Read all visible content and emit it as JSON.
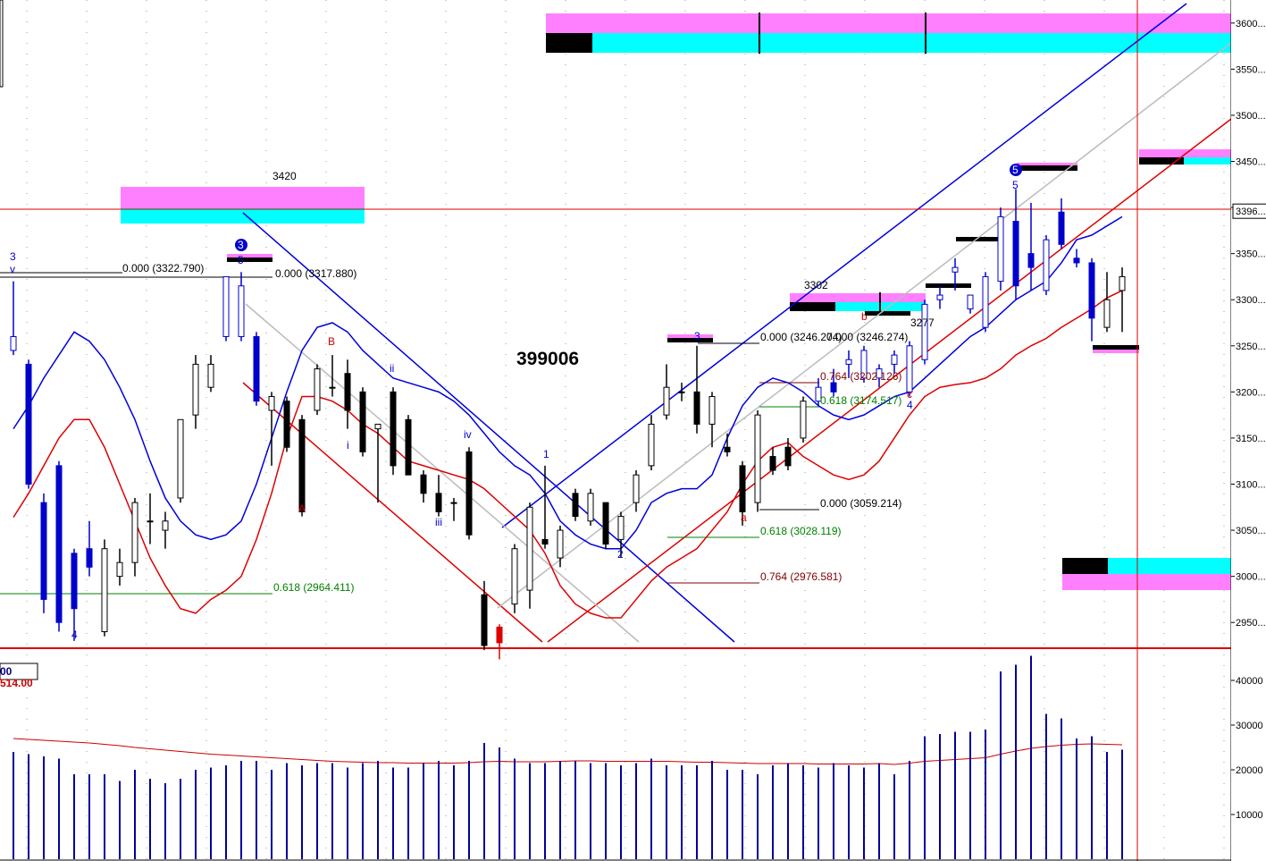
{
  "chart_data": {
    "type": "candlestick",
    "title": "399006",
    "ylim": [
      2925,
      3625
    ],
    "yticks": [
      {
        "value": 2950,
        "label": "2950..."
      },
      {
        "value": 3000,
        "label": "3000..."
      },
      {
        "value": 3050,
        "label": "3050..."
      },
      {
        "value": 3100,
        "label": "3100..."
      },
      {
        "value": 3150,
        "label": "3150..."
      },
      {
        "value": 3200,
        "label": "3200..."
      },
      {
        "value": 3250,
        "label": "3250..."
      },
      {
        "value": 3300,
        "label": "3300..."
      },
      {
        "value": 3350,
        "label": "3350..."
      },
      {
        "value": 3400,
        "label": "3400..."
      },
      {
        "value": 3450,
        "label": "3450..."
      },
      {
        "value": 3500,
        "label": "3500..."
      },
      {
        "value": 3550,
        "label": "3550..."
      },
      {
        "value": 3600,
        "label": "3600..."
      }
    ],
    "last_price": {
      "value": 3396,
      "label": "3396..."
    },
    "open": [
      3245,
      3230,
      3080,
      3120,
      3025,
      3030,
      2940,
      3000,
      3015,
      3060,
      3050,
      3085,
      3175,
      3205,
      3260,
      3260,
      3260,
      3180,
      3190,
      3170,
      3180,
      3205,
      3220,
      3200,
      3160,
      3200,
      3170,
      3110,
      3090,
      3080,
      3135,
      2980,
      2945,
      2970,
      2985,
      3040,
      3020,
      3090,
      3060,
      3080,
      3040,
      3080,
      3120,
      3175,
      3200,
      3200,
      3165,
      3140,
      3120,
      3080,
      3130,
      3140,
      3150,
      3190,
      3210,
      3230,
      3215,
      3215,
      3230,
      3200,
      3235,
      3300,
      3330,
      3290,
      3270,
      3320,
      3385,
      3350,
      3310,
      3395,
      3345,
      3340,
      3270,
      3310
    ],
    "high": [
      3320,
      3235,
      3090,
      3125,
      3030,
      3060,
      3040,
      3030,
      3085,
      3090,
      3070,
      3170,
      3240,
      3240,
      3325,
      3330,
      3265,
      3200,
      3195,
      3175,
      3230,
      3240,
      3235,
      3205,
      3165,
      3205,
      3175,
      3115,
      3110,
      3085,
      3140,
      2995,
      2948,
      3035,
      3080,
      3120,
      3055,
      3095,
      3095,
      3080,
      3070,
      3115,
      3175,
      3230,
      3210,
      3250,
      3200,
      3155,
      3125,
      3180,
      3140,
      3150,
      3195,
      3215,
      3225,
      3245,
      3250,
      3230,
      3245,
      3255,
      3300,
      3315,
      3345,
      3305,
      3330,
      3400,
      3420,
      3405,
      3370,
      3410,
      3355,
      3345,
      3330,
      3335
    ],
    "low": [
      3240,
      3095,
      2960,
      2940,
      2930,
      3000,
      2935,
      2990,
      3000,
      3035,
      3030,
      3080,
      3160,
      3200,
      3255,
      3255,
      3185,
      3120,
      3135,
      3065,
      3175,
      3195,
      3160,
      3130,
      3080,
      3110,
      3110,
      3080,
      3065,
      3060,
      3040,
      2920,
      2910,
      2960,
      2965,
      3030,
      3010,
      3060,
      3055,
      3030,
      3020,
      3070,
      3115,
      3170,
      3190,
      3155,
      3140,
      3130,
      3055,
      3070,
      3110,
      3115,
      3145,
      3185,
      3195,
      3215,
      3210,
      3205,
      3220,
      3195,
      3230,
      3290,
      3310,
      3285,
      3265,
      3310,
      3300,
      3310,
      3305,
      3355,
      3335,
      3255,
      3265,
      3265
    ],
    "close": [
      3260,
      3100,
      2975,
      2950,
      2965,
      3010,
      3030,
      3015,
      3080,
      3060,
      3060,
      3170,
      3230,
      3230,
      3325,
      3315,
      3190,
      3195,
      3140,
      3070,
      3225,
      3205,
      3180,
      3135,
      3165,
      3120,
      3110,
      3090,
      3070,
      3080,
      3045,
      2925,
      2928,
      3030,
      3075,
      3035,
      3050,
      3065,
      3090,
      3035,
      3065,
      3110,
      3165,
      3205,
      3200,
      3165,
      3195,
      3135,
      3070,
      3175,
      3115,
      3120,
      3190,
      3205,
      3200,
      3235,
      3245,
      3225,
      3240,
      3250,
      3295,
      3305,
      3335,
      3305,
      3325,
      3390,
      3315,
      3335,
      3365,
      3360,
      3340,
      3280,
      3300,
      3325
    ],
    "candle_colors": [
      "#0000cc",
      "#0000cc",
      "#0000cc",
      "#0000cc",
      "#0000cc",
      "#0000cc",
      "#000000",
      "#000000",
      "#000000",
      "#000000",
      "#000000",
      "#000000",
      "#000000",
      "#000000",
      "#0000cc",
      "#0000cc",
      "#0000cc",
      "#000000",
      "#000000",
      "#000000",
      "#000000",
      "#000000",
      "#000000",
      "#000000",
      "#000000",
      "#000000",
      "#000000",
      "#000000",
      "#000000",
      "#000000",
      "#000000",
      "#000000",
      "#dd0000",
      "#000000",
      "#000000",
      "#000000",
      "#000000",
      "#000000",
      "#000000",
      "#000000",
      "#000000",
      "#000000",
      "#000000",
      "#000000",
      "#000000",
      "#000000",
      "#000000",
      "#000000",
      "#000000",
      "#000000",
      "#000000",
      "#000000",
      "#000000",
      "#0000cc",
      "#0000cc",
      "#0000cc",
      "#0000cc",
      "#0000cc",
      "#0000cc",
      "#0000cc",
      "#0000cc",
      "#0000cc",
      "#0000cc",
      "#0000cc",
      "#0000cc",
      "#0000cc",
      "#0000cc",
      "#0000cc",
      "#0000cc",
      "#0000cc",
      "#0000cc",
      "#0000cc",
      "#000000",
      "#000000"
    ],
    "bands": [
      {
        "color": "#0000dd",
        "values": [
          3160,
          3185,
          3215,
          3240,
          3265,
          3255,
          3235,
          3205,
          3170,
          3125,
          3085,
          3060,
          3045,
          3040,
          3045,
          3060,
          3100,
          3150,
          3200,
          3245,
          3270,
          3275,
          3265,
          3245,
          3230,
          3215,
          3210,
          3205,
          3200,
          3190,
          3175,
          3155,
          3135,
          3120,
          3110,
          3090,
          3060,
          3045,
          3035,
          3030,
          3030,
          3050,
          3080,
          3090,
          3095,
          3095,
          3110,
          3150,
          3185,
          3205,
          3215,
          3210,
          3200,
          3185,
          3175,
          3170,
          3175,
          3185,
          3195,
          3200,
          3215,
          3230,
          3245,
          3260,
          3270,
          3285,
          3300,
          3310,
          3320,
          3340,
          3365,
          3370,
          3380,
          3390
        ]
      },
      {
        "color": "#dd0000",
        "values": [
          3064,
          3090,
          3120,
          3150,
          3170,
          3170,
          3140,
          3100,
          3060,
          3020,
          2990,
          2965,
          2960,
          2975,
          2985,
          3000,
          3040,
          3090,
          3150,
          3195,
          3195,
          3190,
          3180,
          3165,
          3155,
          3140,
          3125,
          3120,
          3115,
          3110,
          3105,
          3095,
          3080,
          3065,
          3050,
          3025,
          2990,
          2970,
          2960,
          2955,
          2955,
          2975,
          2995,
          3010,
          3020,
          3030,
          3050,
          3070,
          3100,
          3125,
          3140,
          3145,
          3130,
          3120,
          3110,
          3105,
          3110,
          3125,
          3150,
          3175,
          3195,
          3205,
          3208,
          3210,
          3215,
          3225,
          3240,
          3250,
          3258,
          3270,
          3280,
          3290,
          3302,
          3310
        ]
      }
    ],
    "volume": [
      24000,
      23500,
      23000,
      22500,
      19000,
      19000,
      19000,
      17500,
      20000,
      18000,
      17000,
      18000,
      20000,
      20500,
      21000,
      22000,
      22000,
      20000,
      21500,
      21000,
      21500,
      21500,
      20500,
      21500,
      22000,
      20500,
      20500,
      21500,
      22000,
      21000,
      22000,
      26000,
      25000,
      22500,
      21500,
      21500,
      22000,
      22000,
      21500,
      21500,
      21000,
      21500,
      22500,
      21000,
      21000,
      21000,
      22000,
      20000,
      20000,
      19000,
      21000,
      21500,
      21000,
      20500,
      21500,
      21000,
      20500,
      21500,
      19000,
      22000,
      27500,
      28000,
      28500,
      28500,
      29000,
      42000,
      43500,
      45500,
      32500,
      31500,
      27000,
      27500,
      24000,
      24500
    ],
    "volume_color": "#000099",
    "volume_ma": [
      27000,
      26800,
      26600,
      26400,
      26200,
      26000,
      25700,
      25400,
      25000,
      24700,
      24400,
      24100,
      23800,
      23500,
      23300,
      23100,
      22900,
      22700,
      22500,
      22300,
      22100,
      21900,
      21800,
      21700,
      21600,
      21600,
      21500,
      21500,
      21500,
      21500,
      21600,
      21800,
      21900,
      21800,
      21800,
      21800,
      21900,
      22000,
      22000,
      21900,
      21900,
      21900,
      21900,
      21900,
      21800,
      21700,
      21700,
      21600,
      21500,
      21400,
      21400,
      21400,
      21400,
      21300,
      21300,
      21300,
      21300,
      21400,
      21200,
      21500,
      21900,
      22100,
      22300,
      22500,
      22700,
      23500,
      24200,
      24800,
      25200,
      25500,
      25700,
      25800,
      25700,
      25600
    ],
    "volume_ma_color": "#cc0000",
    "volume_ylim": [
      0,
      46800
    ],
    "volume_yticks": [
      10000,
      20000,
      30000,
      40000
    ],
    "legend": [
      {
        "text": "00",
        "color": "#000080"
      },
      {
        "text": "514.00",
        "color": "#cc0000"
      }
    ],
    "annotations": [
      {
        "text": "3420",
        "color": "#000000"
      },
      {
        "text": "0.000 (3322.790)",
        "color": "#000000"
      },
      {
        "text": "0.000 (3317.880)",
        "color": "#000000"
      },
      {
        "text": "0.618 (2964.411)",
        "color": "#008000"
      },
      {
        "text": "3302",
        "color": "#000000"
      },
      {
        "text": "0.000 (3246.274)",
        "color": "#000000"
      },
      {
        "text": "0.000 (3246.274)",
        "color": "#000000"
      },
      {
        "text": "0.764 (3202.126)",
        "color": "#800000"
      },
      {
        "text": "0.618 (3174.517)",
        "color": "#008000"
      },
      {
        "text": "0.000 (3059.214)",
        "color": "#000000"
      },
      {
        "text": "0.618 (3028.119)",
        "color": "#008000"
      },
      {
        "text": "0.764 (2976.581)",
        "color": "#800000"
      },
      {
        "text": "3277",
        "color": "#000000"
      },
      {
        "text": "3",
        "color": "#0000cc"
      },
      {
        "text": "v",
        "color": "#0000cc"
      },
      {
        "text": "4",
        "color": "#0000cc"
      },
      {
        "text": "3",
        "color": "#ffffff"
      },
      {
        "text": "5",
        "color": "#0000cc"
      },
      {
        "text": "A",
        "color": "#cc0000"
      },
      {
        "text": "B",
        "color": "#cc0000"
      },
      {
        "text": "i",
        "color": "#0000cc"
      },
      {
        "text": "ii",
        "color": "#0000cc"
      },
      {
        "text": "iii",
        "color": "#0000cc"
      },
      {
        "text": "iv",
        "color": "#0000cc"
      },
      {
        "text": "1",
        "color": "#0000cc"
      },
      {
        "text": "2",
        "color": "#0000cc"
      },
      {
        "text": "3",
        "color": "#0000cc"
      },
      {
        "text": "a",
        "color": "#cc0000"
      },
      {
        "text": "b",
        "color": "#cc0000"
      },
      {
        "text": "c",
        "color": "#cc0000"
      },
      {
        "text": "4",
        "color": "#0000cc"
      },
      {
        "text": "5",
        "color": "#ffffff"
      },
      {
        "text": "5",
        "color": "#0000cc"
      }
    ]
  }
}
